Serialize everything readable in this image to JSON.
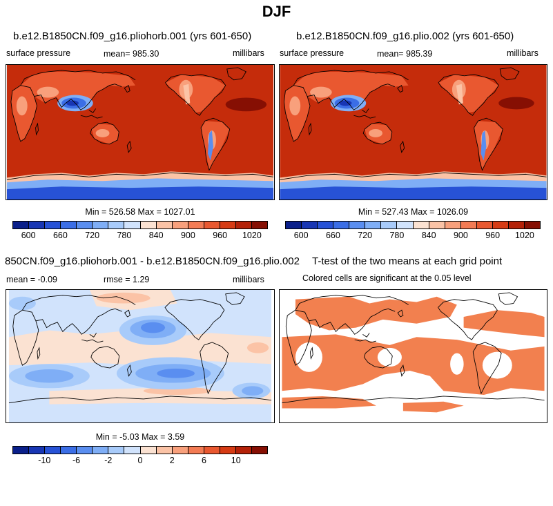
{
  "page": {
    "title": "DJF"
  },
  "panels": {
    "top_left": {
      "title": "b.e12.B1850CN.f09_g16.pliohorb.001 (yrs 601-650)",
      "variable": "surface pressure",
      "mean_text": "mean= 985.30",
      "units": "millibars",
      "minmax_text": "Min = 526.58 Max = 1027.01"
    },
    "top_right": {
      "title": "b.e12.B1850CN.f09_g16.plio.002 (yrs 601-650)",
      "variable": "surface pressure",
      "mean_text": "mean= 985.39",
      "units": "millibars",
      "minmax_text": "Min = 527.43 Max = 1026.09"
    },
    "bottom_left": {
      "title": "850CN.f09_g16.pliohorb.001 - b.e12.B1850CN.f09_g16.plio.002",
      "mean_text": "mean =  -0.09",
      "rmse_text": "rmse =    1.29",
      "units": "millibars",
      "minmax_text": "Min =  -5.03 Max =    3.59"
    },
    "bottom_right": {
      "title": "T-test of the two means at each grid point",
      "subtitle": "Colored cells are significant at the 0.05 level"
    }
  },
  "colorbars": {
    "pressure": {
      "colors": [
        "#0a1f8a",
        "#1836b4",
        "#2752d6",
        "#3b6ee6",
        "#5a8ef0",
        "#7faef6",
        "#a8cbfa",
        "#d1e3fc",
        "#fbe2d2",
        "#fbc3a6",
        "#f8a07c",
        "#f37b54",
        "#e95830",
        "#d63b14",
        "#b42108",
        "#860f03"
      ],
      "labels": [
        "600",
        "660",
        "720",
        "780",
        "840",
        "900",
        "960",
        "1020"
      ]
    },
    "difference": {
      "colors": [
        "#0a1f8a",
        "#1836b4",
        "#2752d6",
        "#3b6ee6",
        "#5a8ef0",
        "#7faef6",
        "#a8cbfa",
        "#d1e3fc",
        "#fbe2d2",
        "#fbc3a6",
        "#f8a07c",
        "#f37b54",
        "#e95830",
        "#d63b14",
        "#b42108",
        "#860f03"
      ],
      "labels": [
        "-10",
        "-6",
        "-2",
        "0",
        "2",
        "6",
        "10"
      ]
    }
  },
  "map_colors": {
    "pressure_background": "#c52c0b",
    "significance_fill": "#f2804f"
  }
}
